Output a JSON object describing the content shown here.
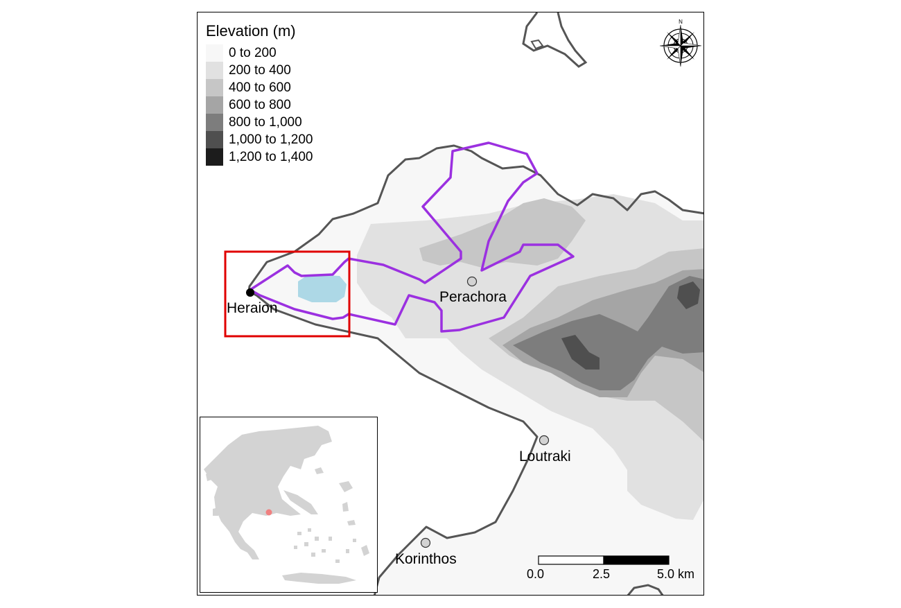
{
  "legend": {
    "title": "Elevation (m)",
    "items": [
      {
        "label": "0 to 200",
        "color": "#f7f7f7"
      },
      {
        "label": "200 to 400",
        "color": "#e1e1e1"
      },
      {
        "label": "400 to 600",
        "color": "#c6c6c6"
      },
      {
        "label": "600 to 800",
        "color": "#a5a5a5"
      },
      {
        "label": "800 to 1,000",
        "color": "#7d7d7d"
      },
      {
        "label": "1,000 to 1,200",
        "color": "#4f4f4f"
      },
      {
        "label": "1,200 to 1,400",
        "color": "#1c1c1c"
      }
    ]
  },
  "places": {
    "heraion": "Heraion",
    "perachora": "Perachora",
    "loutraki": "Loutraki",
    "korinthos": "Korinthos"
  },
  "scale_bar": {
    "labels": [
      "0.0",
      "2.5",
      "5.0 km"
    ]
  },
  "colors": {
    "study_area_outline": "#9b30e0",
    "lake": "#add8e6",
    "focus_box": "#e00000",
    "coastline": "#555555",
    "inset_land": "#d3d3d3",
    "inset_marker": "#f08080"
  },
  "icons": {
    "north_arrow": "compass-rose-icon"
  }
}
